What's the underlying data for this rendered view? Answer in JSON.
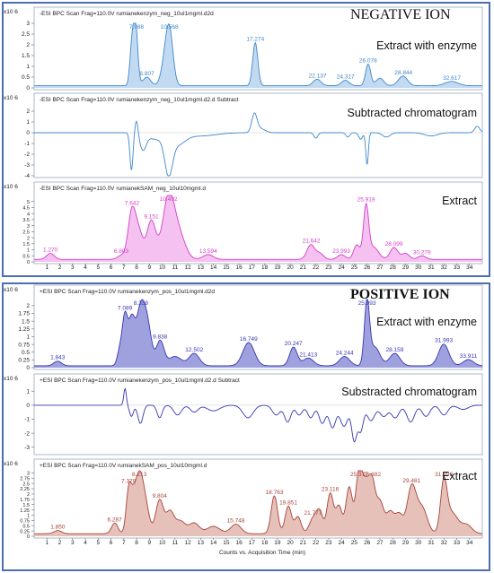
{
  "sections": [
    {
      "label": "NEGATIVE ION"
    },
    {
      "label": "POSITIVE ION"
    }
  ],
  "chart_data": [
    {
      "type": "line",
      "header": "-ESI BPC Scan Frag=110.0V rumianekenzym_neg_10ul1mgml.d2d",
      "yexp": "x10 6",
      "ylim": [
        0,
        3
      ],
      "yticks": [
        "0",
        "0.5",
        "1",
        "1.5",
        "2",
        "2.5",
        "3"
      ],
      "label": "Extract with enzyme",
      "color": "#3f87cc",
      "fill": "#b7d3ef",
      "baseline": 0.1,
      "peaks": [
        [
          7.9,
          3.0,
          0.18
        ],
        [
          7.6,
          1.4,
          0.15
        ],
        [
          8.8,
          0.4,
          0.3
        ],
        [
          10.57,
          2.4,
          0.28
        ],
        [
          10.2,
          0.9,
          0.3
        ],
        [
          17.27,
          2.0,
          0.2
        ],
        [
          22.1,
          0.3,
          0.3
        ],
        [
          24.3,
          0.25,
          0.3
        ],
        [
          26.08,
          1.0,
          0.2
        ],
        [
          27.0,
          0.35,
          0.3
        ],
        [
          28.8,
          0.45,
          0.35
        ],
        [
          32.6,
          0.2,
          0.5
        ]
      ],
      "labels": [
        {
          "x": 7.988,
          "t": "7.988"
        },
        {
          "x": 8.807,
          "t": "8.807"
        },
        {
          "x": 10.568,
          "t": "10.568"
        },
        {
          "x": 17.274,
          "t": "17.274"
        },
        {
          "x": 22.137,
          "t": "22.137"
        },
        {
          "x": 24.317,
          "t": "24.317"
        },
        {
          "x": 26.078,
          "t": "26.078"
        },
        {
          "x": 28.844,
          "t": "28.844"
        },
        {
          "x": 32.617,
          "t": "32.617"
        }
      ],
      "show_xticks": false
    },
    {
      "type": "line",
      "header": "-ESI BPC Scan Frag=110.0V rumianekenzym_neg_10ul1mgml.d2.d Subtract",
      "yexp": "x10 6",
      "ylim": [
        -4,
        2.5
      ],
      "yticks": [
        "-4",
        "-3",
        "-2",
        "-1",
        "0",
        "1",
        "2"
      ],
      "label": "Subtracted chromatogram",
      "color": "#3f87cc",
      "fill": "none",
      "baseline": 0,
      "peaks": [
        [
          7.6,
          -3.5,
          0.12
        ],
        [
          8.0,
          1.3,
          0.12
        ],
        [
          8.5,
          -1.5,
          0.25
        ],
        [
          9.5,
          -0.6,
          0.6
        ],
        [
          10.5,
          -3.4,
          0.3
        ],
        [
          11.2,
          -1.0,
          0.6
        ],
        [
          13.0,
          -0.3,
          1.2
        ],
        [
          17.2,
          1.6,
          0.2
        ],
        [
          17.6,
          0.4,
          0.4
        ],
        [
          22.0,
          -0.5,
          0.15
        ],
        [
          24.5,
          -0.4,
          0.15
        ],
        [
          25.5,
          -0.6,
          0.15
        ],
        [
          26.0,
          -3.0,
          0.1
        ],
        [
          27.5,
          -0.4,
          0.3
        ],
        [
          31.0,
          -0.3,
          0.5
        ],
        [
          34.6,
          0.6,
          0.2
        ]
      ],
      "labels": [],
      "show_xticks": false
    },
    {
      "type": "line",
      "header": "-ESI BPC Scan Frag=110.0V rumianekSAM_neg_10ul10mgml.d",
      "yexp": "x10 6",
      "ylim": [
        0,
        5.5
      ],
      "yticks": [
        "0",
        "0.5",
        "1",
        "1.5",
        "2",
        "2.5",
        "3",
        "3.5",
        "4",
        "4.5",
        "5"
      ],
      "label": "Extract",
      "color": "#d43fc9",
      "fill": "#f2b6ee",
      "baseline": 0.2,
      "peaks": [
        [
          1.27,
          0.5,
          0.3
        ],
        [
          6.8,
          0.3,
          0.3
        ],
        [
          7.64,
          4.0,
          0.3
        ],
        [
          8.2,
          2.0,
          0.3
        ],
        [
          9.15,
          3.2,
          0.35
        ],
        [
          10.49,
          5.0,
          0.45
        ],
        [
          11.3,
          2.0,
          0.5
        ],
        [
          13.59,
          0.4,
          0.4
        ],
        [
          21.6,
          1.2,
          0.3
        ],
        [
          22.3,
          0.5,
          0.3
        ],
        [
          23.99,
          0.4,
          0.3
        ],
        [
          25.2,
          1.2,
          0.25
        ],
        [
          25.92,
          4.3,
          0.2
        ],
        [
          26.5,
          1.0,
          0.4
        ],
        [
          28.1,
          1.0,
          0.3
        ],
        [
          29.0,
          0.5,
          0.3
        ],
        [
          30.28,
          0.3,
          0.3
        ]
      ],
      "labels": [
        {
          "x": 1.27,
          "t": "1.270"
        },
        {
          "x": 6.803,
          "t": "6.803"
        },
        {
          "x": 7.642,
          "t": "7.642"
        },
        {
          "x": 9.151,
          "t": "9.151"
        },
        {
          "x": 10.492,
          "t": "10.492"
        },
        {
          "x": 13.594,
          "t": "13.594"
        },
        {
          "x": 21.642,
          "t": "21.642"
        },
        {
          "x": 23.993,
          "t": "23.993"
        },
        {
          "x": 25.919,
          "t": "25.919"
        },
        {
          "x": 28.099,
          "t": "28.099"
        },
        {
          "x": 30.279,
          "t": "30.279"
        }
      ],
      "show_xticks": true
    },
    {
      "type": "line",
      "header": "+ESI BPC Scan Frag=110.0V rumianekenzym_pos_10ul1mgml.d2d",
      "yexp": "x10 6",
      "ylim": [
        0,
        2.2
      ],
      "yticks": [
        "0",
        "0.25",
        "0.5",
        "0.75",
        "1",
        "1.25",
        "1.5",
        "1.75",
        "2"
      ],
      "label": "Extract with enzyme",
      "color": "#3535b5",
      "fill": "#8e90d8",
      "baseline": 0.06,
      "peaks": [
        [
          1.84,
          0.15,
          0.3
        ],
        [
          6.7,
          0.5,
          0.2
        ],
        [
          7.09,
          1.5,
          0.2
        ],
        [
          7.6,
          1.4,
          0.25
        ],
        [
          8.34,
          1.9,
          0.35
        ],
        [
          8.9,
          1.0,
          0.3
        ],
        [
          9.84,
          0.8,
          0.3
        ],
        [
          11.0,
          0.3,
          0.5
        ],
        [
          12.5,
          0.4,
          0.4
        ],
        [
          16.75,
          0.75,
          0.45
        ],
        [
          20.25,
          0.6,
          0.3
        ],
        [
          21.41,
          0.25,
          0.4
        ],
        [
          24.24,
          0.3,
          0.4
        ],
        [
          25.99,
          2.0,
          0.2
        ],
        [
          26.6,
          0.6,
          0.4
        ],
        [
          28.16,
          0.4,
          0.4
        ],
        [
          31.99,
          0.7,
          0.4
        ],
        [
          33.91,
          0.2,
          0.4
        ]
      ],
      "labels": [
        {
          "x": 1.843,
          "t": "1.843"
        },
        {
          "x": 7.089,
          "t": "7.089"
        },
        {
          "x": 8.338,
          "t": "8.338"
        },
        {
          "x": 9.838,
          "t": "9.838"
        },
        {
          "x": 12.502,
          "t": "12.502"
        },
        {
          "x": 16.749,
          "t": "16.749"
        },
        {
          "x": 20.247,
          "t": "20.247"
        },
        {
          "x": 21.413,
          "t": "21.413"
        },
        {
          "x": 24.244,
          "t": "24.244"
        },
        {
          "x": 25.993,
          "t": "25.993"
        },
        {
          "x": 28.159,
          "t": "28.159"
        },
        {
          "x": 31.993,
          "t": "31.993"
        },
        {
          "x": 33.911,
          "t": "33.911"
        }
      ],
      "show_xticks": false
    },
    {
      "type": "line",
      "header": "+ESI BPC Scan Frag=110.0V rumianekenzym_pos_10ul1mgml.d2.d Subtract",
      "yexp": "x10 6",
      "ylim": [
        -3.4,
        1.4
      ],
      "yticks": [
        "-3",
        "-2",
        "-1",
        "0",
        "1"
      ],
      "label": "Substracted chromatogram",
      "color": "#3535b5",
      "fill": "none",
      "baseline": 0,
      "peaks": [
        [
          7.1,
          1.2,
          0.1
        ],
        [
          7.6,
          -0.8,
          0.15
        ],
        [
          8.3,
          -1.3,
          0.2
        ],
        [
          9.8,
          -0.9,
          0.2
        ],
        [
          11.2,
          -0.7,
          0.3
        ],
        [
          12.5,
          -0.5,
          0.3
        ],
        [
          14.0,
          -0.4,
          0.5
        ],
        [
          16.7,
          -0.9,
          0.4
        ],
        [
          18.9,
          -0.7,
          0.3
        ],
        [
          19.8,
          -1.2,
          0.25
        ],
        [
          20.7,
          -0.7,
          0.25
        ],
        [
          21.6,
          -0.9,
          0.25
        ],
        [
          22.5,
          -1.3,
          0.25
        ],
        [
          23.3,
          -1.6,
          0.25
        ],
        [
          24.2,
          -1.5,
          0.3
        ],
        [
          25.0,
          -2.5,
          0.2
        ],
        [
          25.5,
          -1.8,
          0.2
        ],
        [
          26.3,
          -1.1,
          0.3
        ],
        [
          27.3,
          -0.8,
          0.3
        ],
        [
          28.2,
          -0.9,
          0.3
        ],
        [
          29.4,
          -1.2,
          0.3
        ],
        [
          30.6,
          -0.8,
          0.3
        ],
        [
          32.0,
          -0.7,
          0.3
        ],
        [
          33.5,
          -0.3,
          0.4
        ]
      ],
      "labels": [],
      "show_xticks": false
    },
    {
      "type": "line",
      "header": "+ESI BPC Scan Frag=110.0V rumianekSAM_pos_10ul10mgml.d",
      "yexp": "x10 6",
      "ylim": [
        0,
        3.1
      ],
      "yticks": [
        "0",
        "0.25",
        "0.5",
        "0.75",
        "1",
        "1.25",
        "1.5",
        "1.75",
        "2",
        "2.25",
        "2.5",
        "2.75",
        "3"
      ],
      "label": "Extract",
      "color": "#a8433a",
      "fill": "#e2b6ad",
      "baseline": 0.12,
      "peaks": [
        [
          1.85,
          0.15,
          0.3
        ],
        [
          6.29,
          0.5,
          0.25
        ],
        [
          7.37,
          1.7,
          0.2
        ],
        [
          7.7,
          1.3,
          0.25
        ],
        [
          8.21,
          2.5,
          0.3
        ],
        [
          8.7,
          1.2,
          0.3
        ],
        [
          9.8,
          1.6,
          0.3
        ],
        [
          10.6,
          1.0,
          0.3
        ],
        [
          11.4,
          0.6,
          0.4
        ],
        [
          12.5,
          0.5,
          0.4
        ],
        [
          14.0,
          0.35,
          0.5
        ],
        [
          15.75,
          0.45,
          0.4
        ],
        [
          18.76,
          1.8,
          0.25
        ],
        [
          19.85,
          1.3,
          0.25
        ],
        [
          20.6,
          0.8,
          0.25
        ],
        [
          21.78,
          0.7,
          0.3
        ],
        [
          22.3,
          1.0,
          0.25
        ],
        [
          23.12,
          1.9,
          0.25
        ],
        [
          23.8,
          1.3,
          0.25
        ],
        [
          24.6,
          2.2,
          0.25
        ],
        [
          25.38,
          3.0,
          0.25
        ],
        [
          25.9,
          2.0,
          0.25
        ],
        [
          26.38,
          2.3,
          0.25
        ],
        [
          27.0,
          1.5,
          0.3
        ],
        [
          27.8,
          1.0,
          0.3
        ],
        [
          28.5,
          0.9,
          0.3
        ],
        [
          29.48,
          2.2,
          0.35
        ],
        [
          30.3,
          1.2,
          0.4
        ],
        [
          31.99,
          2.2,
          0.25
        ],
        [
          32.6,
          1.0,
          0.5
        ],
        [
          33.8,
          0.4,
          0.4
        ]
      ],
      "labels": [
        {
          "x": 1.85,
          "t": "1.850"
        },
        {
          "x": 6.287,
          "t": "6.287"
        },
        {
          "x": 7.378,
          "t": "7.378"
        },
        {
          "x": 8.213,
          "t": "8.213"
        },
        {
          "x": 9.804,
          "t": "9.804"
        },
        {
          "x": 15.748,
          "t": "15.748"
        },
        {
          "x": 18.763,
          "t": "18.763"
        },
        {
          "x": 19.851,
          "t": "19.851"
        },
        {
          "x": 21.777,
          "t": "21.777"
        },
        {
          "x": 23.116,
          "t": "23.116"
        },
        {
          "x": 25.377,
          "t": "25.377"
        },
        {
          "x": 26.382,
          "t": "26.382"
        },
        {
          "x": 29.481,
          "t": "29.481"
        },
        {
          "x": 31.993,
          "t": "31.993"
        }
      ],
      "show_xticks": true
    }
  ],
  "xaxis": {
    "xlim": [
      0,
      35
    ],
    "ticks": [
      "1",
      "2",
      "3",
      "4",
      "5",
      "6",
      "7",
      "8",
      "9",
      "10",
      "11",
      "12",
      "13",
      "14",
      "15",
      "16",
      "17",
      "18",
      "19",
      "20",
      "21",
      "22",
      "23",
      "24",
      "25",
      "26",
      "27",
      "28",
      "29",
      "30",
      "31",
      "32",
      "33",
      "34"
    ],
    "title": "Counts vs. Acquisition Time (min)"
  }
}
